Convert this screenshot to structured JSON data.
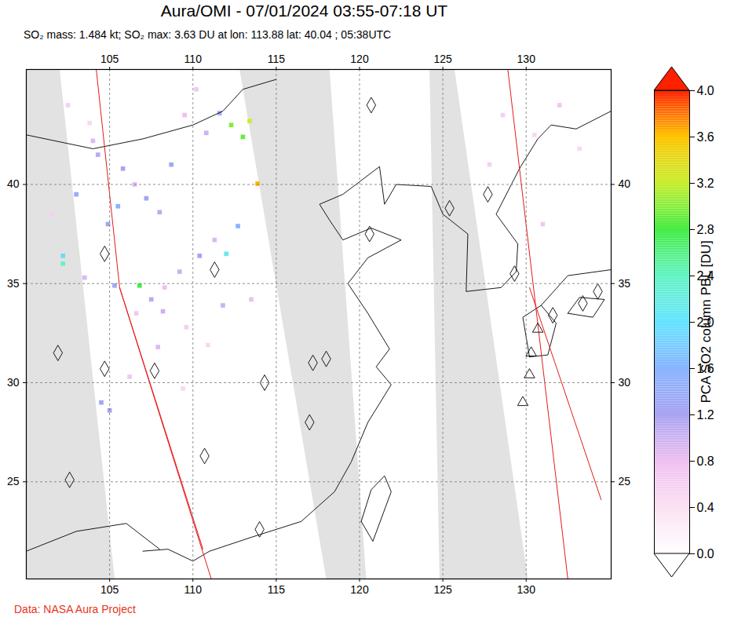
{
  "chart_data": {
    "type": "map",
    "title": "Aura/OMI - 07/01/2024 03:55-07:18 UT",
    "subtitle": "SO₂ mass: 1.484 kt; SO₂ max: 3.63 DU at lon: 113.88 lat: 40.04 ; 05:38UTC",
    "caption": "Data: NASA Aura Project",
    "xlim": [
      100,
      135.1
    ],
    "ylim": [
      20.1,
      45.8
    ],
    "xticks": [
      105,
      110,
      115,
      120,
      125,
      130
    ],
    "yticks": [
      25,
      30,
      35,
      40
    ],
    "grid": true,
    "so2_pixels": {
      "lon": [
        102.5,
        103.8,
        104.0,
        104.3,
        105.8,
        106.5,
        107.2,
        108.0,
        108.7,
        109.5,
        110.2,
        110.8,
        111.6,
        112.3,
        113.0,
        113.4,
        113.88,
        112.7,
        111.3,
        110.4,
        109.2,
        108.3,
        107.5,
        106.6,
        105.5,
        104.9,
        102.2,
        102.2,
        103.5,
        105.3,
        106.8,
        108.2,
        109.6,
        110.9,
        112.0,
        104.5,
        105.0,
        106.2,
        107.9,
        109.4,
        111.8,
        113.5,
        101.5,
        103.0,
        128.6,
        130.5,
        132.0,
        133.2,
        127.8,
        131.0
      ],
      "lat": [
        44.0,
        43.1,
        42.2,
        41.5,
        40.8,
        40.0,
        39.3,
        38.6,
        41.0,
        43.5,
        44.8,
        42.6,
        43.6,
        43.0,
        42.4,
        43.2,
        40.04,
        37.9,
        37.2,
        36.4,
        35.6,
        34.8,
        34.2,
        33.5,
        38.9,
        38.0,
        36.4,
        36.0,
        35.3,
        34.9,
        34.9,
        33.6,
        32.8,
        31.9,
        36.5,
        29.0,
        28.6,
        30.3,
        31.8,
        29.7,
        33.9,
        34.2,
        38.5,
        39.5,
        43.5,
        42.5,
        44.0,
        41.8,
        41.0,
        38.0
      ],
      "values": [
        0.6,
        0.5,
        0.9,
        1.1,
        1.2,
        0.9,
        1.3,
        1.1,
        1.4,
        0.8,
        0.7,
        1.0,
        1.3,
        3.0,
        2.9,
        3.2,
        3.63,
        1.6,
        0.9,
        1.2,
        1.0,
        0.8,
        1.1,
        0.7,
        1.6,
        1.3,
        1.9,
        2.4,
        0.9,
        1.3,
        2.8,
        1.0,
        0.6,
        0.5,
        2.1,
        1.3,
        1.2,
        0.7,
        0.9,
        0.5,
        1.0,
        0.8,
        0.6,
        1.4,
        0.6,
        0.5,
        0.7,
        0.5,
        0.6,
        0.7
      ]
    },
    "no_data_swaths": {
      "color": "#e2e2e2",
      "polygons": [
        [
          [
            100,
            45.8
          ],
          [
            102,
            45.8
          ],
          [
            105.3,
            20.1
          ],
          [
            100,
            20.1
          ]
        ],
        [
          [
            112.8,
            45.8
          ],
          [
            118.2,
            45.8
          ],
          [
            120.4,
            20.1
          ],
          [
            118.0,
            20.1
          ]
        ],
        [
          [
            124.2,
            45.8
          ],
          [
            125.7,
            45.8
          ],
          [
            130.1,
            20.1
          ],
          [
            124.8,
            20.1
          ]
        ]
      ]
    },
    "orbit_tracks": {
      "color": "#e41a1c",
      "lines": [
        [
          [
            104.2,
            45.8
          ],
          [
            105.6,
            34.8
          ],
          [
            111.1,
            20.1
          ]
        ],
        [
          [
            105.6,
            34.8
          ],
          [
            110.6,
            21.6
          ]
        ],
        [
          [
            128.9,
            45.8
          ],
          [
            132.5,
            20.1
          ]
        ],
        [
          [
            130.2,
            34.8
          ],
          [
            134.5,
            24.1
          ]
        ]
      ]
    },
    "coastlines": [
      [
        [
          107,
          21.5
        ],
        [
          108.5,
          21.6
        ],
        [
          110,
          21
        ],
        [
          111,
          21.5
        ],
        [
          113.5,
          22.2
        ],
        [
          116.5,
          23
        ],
        [
          118.5,
          24.5
        ],
        [
          119.5,
          26
        ],
        [
          120.5,
          28
        ],
        [
          121.9,
          29.9
        ],
        [
          121,
          30.8
        ],
        [
          121.8,
          31.7
        ],
        [
          120.5,
          33.5
        ],
        [
          119.3,
          35
        ],
        [
          120.5,
          36.3
        ],
        [
          122.5,
          37.2
        ],
        [
          120.7,
          37.8
        ],
        [
          119,
          37.2
        ],
        [
          118.2,
          38.2
        ],
        [
          117.6,
          39
        ],
        [
          119,
          39.5
        ],
        [
          121.2,
          40.9
        ],
        [
          121.5,
          39
        ],
        [
          122.2,
          40
        ],
        [
          124.3,
          39.9
        ],
        [
          125,
          38.5
        ],
        [
          126.5,
          37.5
        ],
        [
          126.4,
          34.6
        ],
        [
          128.5,
          34.8
        ],
        [
          129.4,
          35.6
        ],
        [
          129.5,
          37
        ],
        [
          128.2,
          38.5
        ],
        [
          129.6,
          40.8
        ],
        [
          130.7,
          42.3
        ],
        [
          131.5,
          43
        ],
        [
          133,
          42.8
        ],
        [
          135.1,
          43.7
        ]
      ],
      [
        [
          120.1,
          23
        ],
        [
          120.8,
          22
        ],
        [
          121.9,
          24.5
        ],
        [
          121.5,
          25.3
        ],
        [
          120.7,
          24.6
        ],
        [
          120.1,
          23
        ]
      ],
      [
        [
          130.2,
          31.3
        ],
        [
          131.3,
          31.4
        ],
        [
          131.8,
          33
        ],
        [
          130.9,
          33.9
        ],
        [
          129.8,
          33.3
        ],
        [
          130.2,
          31.3
        ]
      ],
      [
        [
          130.9,
          33.9
        ],
        [
          132.5,
          35.4
        ],
        [
          135.1,
          35.7
        ]
      ],
      [
        [
          132.5,
          33.5
        ],
        [
          134,
          33.3
        ],
        [
          134.7,
          34.2
        ],
        [
          133.2,
          34.3
        ],
        [
          132.5,
          33.5
        ]
      ],
      [
        [
          100,
          42.5
        ],
        [
          104,
          41.8
        ],
        [
          107,
          42.3
        ],
        [
          110,
          43
        ],
        [
          111.8,
          43.7
        ],
        [
          113,
          44.8
        ],
        [
          115,
          45.3
        ]
      ],
      [
        [
          100,
          21.5
        ],
        [
          103,
          22.5
        ],
        [
          106,
          22.9
        ],
        [
          108,
          21.6
        ]
      ]
    ],
    "volcanoes": {
      "diamond": [
        [
          104.7,
          36.5
        ],
        [
          111.3,
          35.7
        ],
        [
          101.9,
          31.5
        ],
        [
          104.7,
          30.7
        ],
        [
          107.7,
          30.6
        ],
        [
          102.6,
          25.1
        ],
        [
          117.2,
          31.0
        ],
        [
          118.0,
          31.2
        ],
        [
          114.3,
          30.0
        ],
        [
          117.0,
          28.0
        ],
        [
          120.7,
          44.0
        ],
        [
          125.4,
          38.8
        ],
        [
          120.6,
          37.5
        ],
        [
          127.7,
          39.5
        ],
        [
          129.3,
          35.5
        ],
        [
          114.0,
          22.6
        ],
        [
          110.7,
          26.3
        ],
        [
          131.6,
          33.4
        ],
        [
          133.4,
          34.0
        ],
        [
          134.3,
          34.6
        ]
      ],
      "triangle": [
        [
          130.7,
          32.7
        ],
        [
          130.3,
          31.5
        ],
        [
          130.2,
          30.4
        ],
        [
          129.8,
          29.0
        ]
      ]
    },
    "colorbar": {
      "label": "PCA SO2 column PBL [DU]",
      "range": [
        0,
        4
      ],
      "ticks": [
        {
          "value": 0,
          "label": "0.0"
        },
        {
          "value": 0.4,
          "label": "0.4"
        },
        {
          "value": 0.8,
          "label": "0.8"
        },
        {
          "value": 1.2,
          "label": "1.2"
        },
        {
          "value": 1.6,
          "label": "1.6"
        },
        {
          "value": 2,
          "label": "2.0"
        },
        {
          "value": 2.4,
          "label": "2.4"
        },
        {
          "value": 2.8,
          "label": "2.8"
        },
        {
          "value": 3.2,
          "label": "3.2"
        },
        {
          "value": 3.6,
          "label": "3.6"
        },
        {
          "value": 4,
          "label": "4.0"
        }
      ],
      "stops": [
        {
          "value": 0,
          "color": "#ffffff"
        },
        {
          "value": 0.4,
          "color": "#fbe0f2"
        },
        {
          "value": 0.8,
          "color": "#eec0f0"
        },
        {
          "value": 1.2,
          "color": "#a8a4f2"
        },
        {
          "value": 1.6,
          "color": "#88b4ff"
        },
        {
          "value": 2,
          "color": "#66e4ff"
        },
        {
          "value": 2.4,
          "color": "#66f4c4"
        },
        {
          "value": 2.8,
          "color": "#44ec44"
        },
        {
          "value": 3.2,
          "color": "#c8ee30"
        },
        {
          "value": 3.6,
          "color": "#ffc400"
        },
        {
          "value": 4,
          "color": "#ff2000"
        }
      ]
    }
  }
}
